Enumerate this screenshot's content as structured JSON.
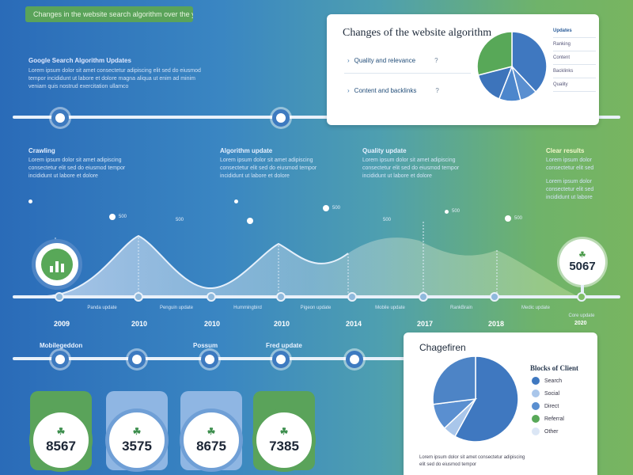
{
  "header": {
    "chip_text": "Changes in the website search algorithm over the years"
  },
  "intro": {
    "title": "Google Search Algorithm Updates",
    "lines": [
      "Lorem ipsum dolor sit amet consectetur adipiscing elit sed do eiusmod",
      "tempor incididunt ut labore et dolore magna aliqua ut enim ad minim",
      "veniam quis nostrud exercitation ullamco"
    ]
  },
  "top_card": {
    "title": "Changes of the website algorithm",
    "items": [
      {
        "label": "Quality and relevance",
        "end": "?"
      },
      {
        "label": "Content and backlinks",
        "end": "?"
      }
    ],
    "legend": [
      "Updates",
      "Ranking",
      "Content",
      "Backlinks",
      "Quality"
    ]
  },
  "sections": [
    {
      "title": "Crawling",
      "lines": [
        "Lorem ipsum dolor sit amet adipiscing",
        "consectetur elit sed do eiusmod tempor",
        "incididunt ut labore et dolore"
      ]
    },
    {
      "title": "Algorithm update",
      "lines": [
        "Lorem ipsum dolor sit amet adipiscing",
        "consectetur elit sed do eiusmod tempor",
        "incididunt ut labore et dolore"
      ]
    },
    {
      "title": "Quality update",
      "lines": [
        "Lorem ipsum dolor sit amet adipiscing",
        "consectetur elit sed do eiusmod tempor",
        "incididunt ut labore et dolore"
      ]
    },
    {
      "title": "Clear results",
      "lines": [
        "Lorem ipsum dolor",
        "consectetur elit sed",
        "",
        "Lorem ipsum dolor",
        "consectetur elit sed",
        "incididunt ut labore"
      ]
    }
  ],
  "points": [
    "500",
    "500",
    "500",
    "500",
    "500",
    "500"
  ],
  "timeline": {
    "years": [
      "2009",
      "2010",
      "2010",
      "2010",
      "2014",
      "2017",
      "2018",
      "2020"
    ],
    "labels": [
      "Panda update",
      "Penguin update",
      "Hummingbird",
      "Pigeon update",
      "Mobile update",
      "RankBrain",
      "Medic update",
      "Core update"
    ]
  },
  "badge": {
    "value": "5067"
  },
  "bottom_labels": [
    "Mobilegeddon",
    "Possum",
    "Fred update"
  ],
  "stats": [
    "8567",
    "3575",
    "8675",
    "7385"
  ],
  "bottom_card": {
    "title": "Chagefiren",
    "legend_title": "Blocks of Client",
    "legend": [
      "Search",
      "Social",
      "Direct",
      "Referral",
      "Other"
    ],
    "footnote": [
      "Lorem ipsum dolor sit amet consectetur adipiscing",
      "elit sed do eiusmod tempor"
    ]
  },
  "chart_data": [
    {
      "type": "pie",
      "title": "Changes of the website algorithm",
      "labels": [
        "Updates",
        "Ranking",
        "Content",
        "Backlinks",
        "Quality"
      ],
      "values": [
        38,
        8,
        10,
        15,
        29
      ]
    },
    {
      "type": "pie",
      "title": "Chagefiren",
      "labels": [
        "Search",
        "Social",
        "Direct",
        "Referral",
        "Other"
      ],
      "values": [
        58,
        5,
        10,
        27,
        0
      ]
    }
  ],
  "colors": {
    "blue": "#3f78c0",
    "light_blue": "#88aedc",
    "green": "#58a858",
    "mid_blue": "#5a8fd0"
  }
}
